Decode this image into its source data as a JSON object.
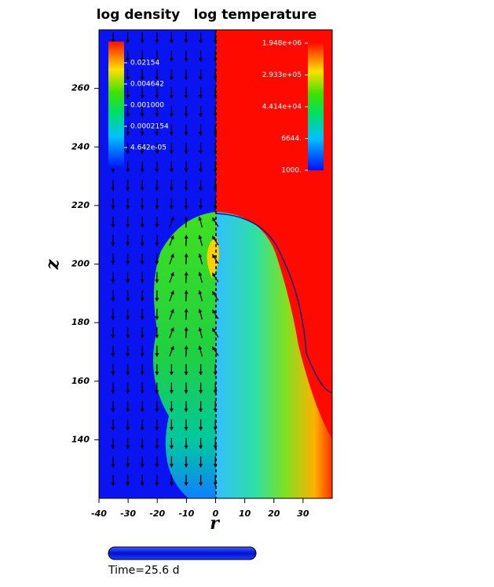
{
  "chart_data": {
    "type": "field",
    "panel_titles": [
      "log density",
      "log temperature"
    ],
    "xlabel": "r",
    "ylabel": "z",
    "xlim": [
      -40,
      40
    ],
    "xticks": [
      -40,
      -30,
      -20,
      -10,
      0,
      10,
      20,
      30
    ],
    "ylim": [
      120,
      280
    ],
    "yticks": [
      140,
      160,
      180,
      200,
      220,
      240,
      260
    ],
    "colorbars": [
      {
        "name": "log density",
        "log": true,
        "clim": [
          1e-05,
          0.1
        ],
        "ticks": [
          0.02154,
          0.004642,
          {
            "value": 0.001,
            "label": "0.001000"
          },
          0.0002154,
          {
            "value": 4.642e-05,
            "label": "4.642e-05"
          }
        ]
      },
      {
        "name": "log temperature",
        "log": true,
        "clim": [
          1000,
          1948000
        ],
        "ticks": [
          {
            "value": 1948000,
            "label": "1.948e+06"
          },
          {
            "value": 293300,
            "label": "2.933e+05"
          },
          {
            "value": 44140,
            "label": "4.414e+04"
          },
          {
            "value": 6644,
            "label": "6644."
          },
          {
            "value": 1000,
            "label": "1000."
          }
        ]
      }
    ],
    "time_label": "Time=25.6 d"
  }
}
